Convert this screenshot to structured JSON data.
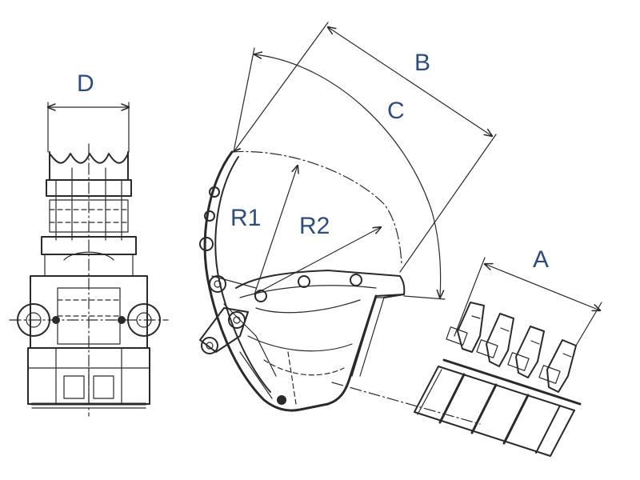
{
  "labels": {
    "A": "A",
    "B": "B",
    "C": "C",
    "D": "D",
    "R1": "R1",
    "R2": "R2"
  },
  "colors": {
    "label": "#2f4d7a",
    "ink": "#2a2a2a",
    "background": "#ffffff"
  }
}
